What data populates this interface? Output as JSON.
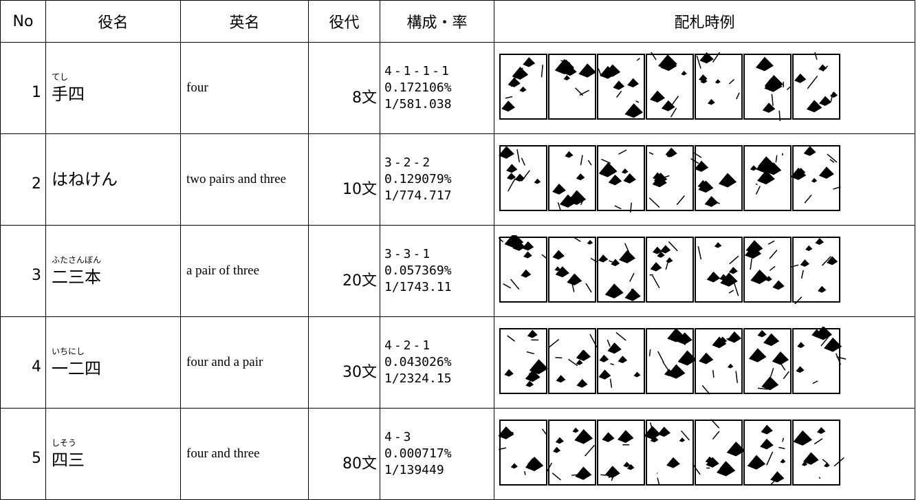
{
  "table": {
    "header": [
      "No",
      "役名",
      "英名",
      "役代",
      "構成・率",
      "配札時例"
    ],
    "rows": [
      {
        "no": "1",
        "ruby": "てし",
        "name": "手四",
        "english": "four",
        "points": "8文",
        "composition": "4-1-1-1",
        "rate": "0.172106%",
        "odds": "1/581.038"
      },
      {
        "no": "2",
        "name": "はねけん",
        "english": "two pairs and three",
        "points": "10文",
        "composition": "3-2-2",
        "rate": "0.129079%",
        "odds": "1/774.717"
      },
      {
        "no": "3",
        "ruby": "ふたさんぼん",
        "name": "二三本",
        "english": "a pair of three",
        "points": "20文",
        "composition": "3-3-1",
        "rate": "0.057369%",
        "odds": "1/1743.11"
      },
      {
        "no": "4",
        "ruby": "いちにし",
        "name": "一二四",
        "english": "four and a pair",
        "points": "30文",
        "composition": "4-2-1",
        "rate": "0.043026%",
        "odds": "1/2324.15"
      },
      {
        "no": "5",
        "ruby": "しそう",
        "name": "四三",
        "english": "four and three",
        "points": "80文",
        "composition": "4-3",
        "rate": "0.000717%",
        "odds": "1/139449"
      }
    ]
  }
}
